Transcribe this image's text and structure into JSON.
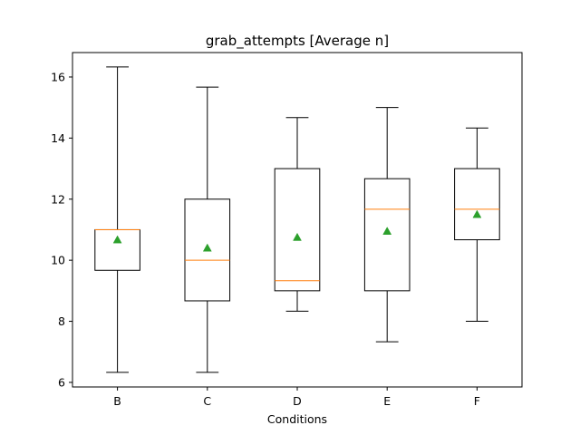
{
  "chart_data": {
    "type": "box",
    "title": "grab_attempts [Average n]",
    "xlabel": "Conditions",
    "ylabel": "",
    "ylim": [
      5.85,
      16.8
    ],
    "yticks": [
      6,
      8,
      10,
      12,
      14,
      16
    ],
    "grid": false,
    "legend": "none",
    "colors": {
      "box": "#000000",
      "median": "#ff7f0e",
      "mean_marker": "#2ca02c"
    },
    "categories": [
      "B",
      "C",
      "D",
      "E",
      "F"
    ],
    "boxes": [
      {
        "category": "B",
        "whisker_low": 6.33,
        "q1": 9.67,
        "median": 11.0,
        "q3": 11.0,
        "whisker_high": 16.33,
        "mean": 10.67
      },
      {
        "category": "C",
        "whisker_low": 6.33,
        "q1": 8.67,
        "median": 10.0,
        "q3": 12.0,
        "whisker_high": 15.67,
        "mean": 10.4
      },
      {
        "category": "D",
        "whisker_low": 8.33,
        "q1": 9.0,
        "median": 9.33,
        "q3": 13.0,
        "whisker_high": 14.67,
        "mean": 10.75
      },
      {
        "category": "E",
        "whisker_low": 7.33,
        "q1": 9.0,
        "median": 11.67,
        "q3": 12.67,
        "whisker_high": 15.0,
        "mean": 10.95
      },
      {
        "category": "F",
        "whisker_low": 8.0,
        "q1": 10.67,
        "median": 11.67,
        "q3": 13.0,
        "whisker_high": 14.33,
        "mean": 11.5
      }
    ]
  }
}
